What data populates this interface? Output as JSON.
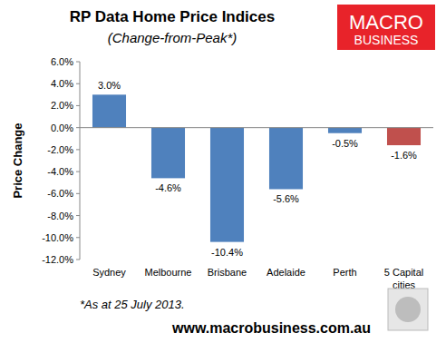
{
  "chart_data": {
    "type": "bar",
    "title": "RP Data Home Price Indices",
    "subtitle": "(Change-from-Peak*)",
    "y_label": "Price Change",
    "categories": [
      "Sydney",
      "Melbourne",
      "Brisbane",
      "Adelaide",
      "Perth",
      "5 Capital cities"
    ],
    "values": [
      3.0,
      -4.6,
      -10.4,
      -5.6,
      -0.5,
      -1.6
    ],
    "value_labels": [
      "3.0%",
      "-4.6%",
      "-10.4%",
      "-5.6%",
      "-0.5%",
      "-1.6%"
    ],
    "colors": [
      "#4f81bd",
      "#4f81bd",
      "#4f81bd",
      "#4f81bd",
      "#4f81bd",
      "#c0504d"
    ],
    "ylim": [
      -12,
      6
    ],
    "yticks": [
      {
        "value": 6,
        "label": "6.0%"
      },
      {
        "value": 4,
        "label": "4.0%"
      },
      {
        "value": 2,
        "label": "2.0%"
      },
      {
        "value": 0,
        "label": "0.0%"
      },
      {
        "value": -2,
        "label": "-2.0%"
      },
      {
        "value": -4,
        "label": "-4.0%"
      },
      {
        "value": -6,
        "label": "-6.0%"
      },
      {
        "value": -8,
        "label": "-8.0%"
      },
      {
        "value": -10,
        "label": "-10.0%"
      },
      {
        "value": -12,
        "label": "-12.0%"
      }
    ],
    "grid": false,
    "data_labels": true,
    "annotations": [
      "*As at 25 July 2013.",
      "www.macrobusiness.com.au",
      "MACRO",
      "BUSINESS"
    ]
  }
}
